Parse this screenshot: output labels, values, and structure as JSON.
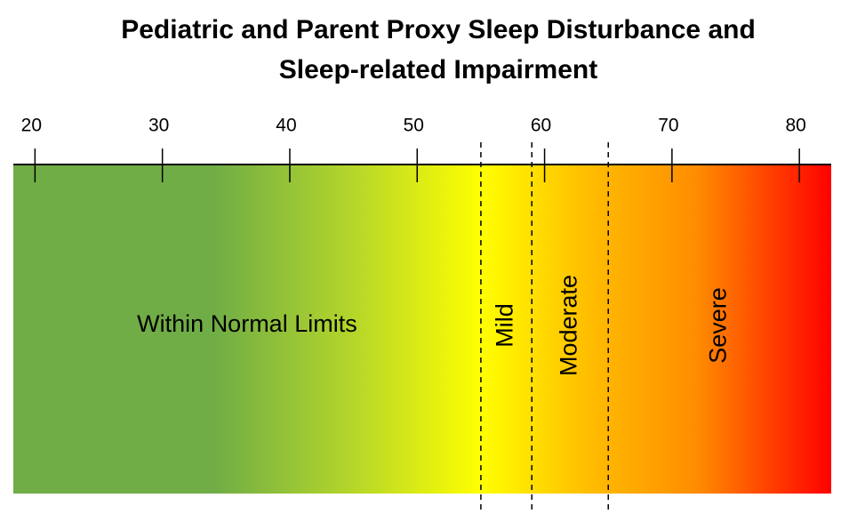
{
  "chart_data": {
    "type": "severity-scale",
    "title": [
      "Pediatric and Parent Proxy Sleep Disturbance and",
      "Sleep-related Impairment"
    ],
    "xlim": [
      18.3,
      82.5
    ],
    "xticks": [
      20,
      30,
      40,
      50,
      60,
      70,
      80
    ],
    "cutoffs": [
      55,
      59,
      65
    ],
    "regions": [
      "Within Normal Limits",
      "Mild",
      "Moderate",
      "Severe"
    ],
    "gradient": [
      {
        "value": 34,
        "color": "#70ad47"
      },
      {
        "value": 45,
        "color": "#b5d62a"
      },
      {
        "value": 55,
        "color": "#ffff00"
      },
      {
        "value": 63,
        "color": "#ffc000"
      },
      {
        "value": 72,
        "color": "#ff8c00"
      },
      {
        "value": 82.5,
        "color": "#ff0000"
      }
    ]
  }
}
